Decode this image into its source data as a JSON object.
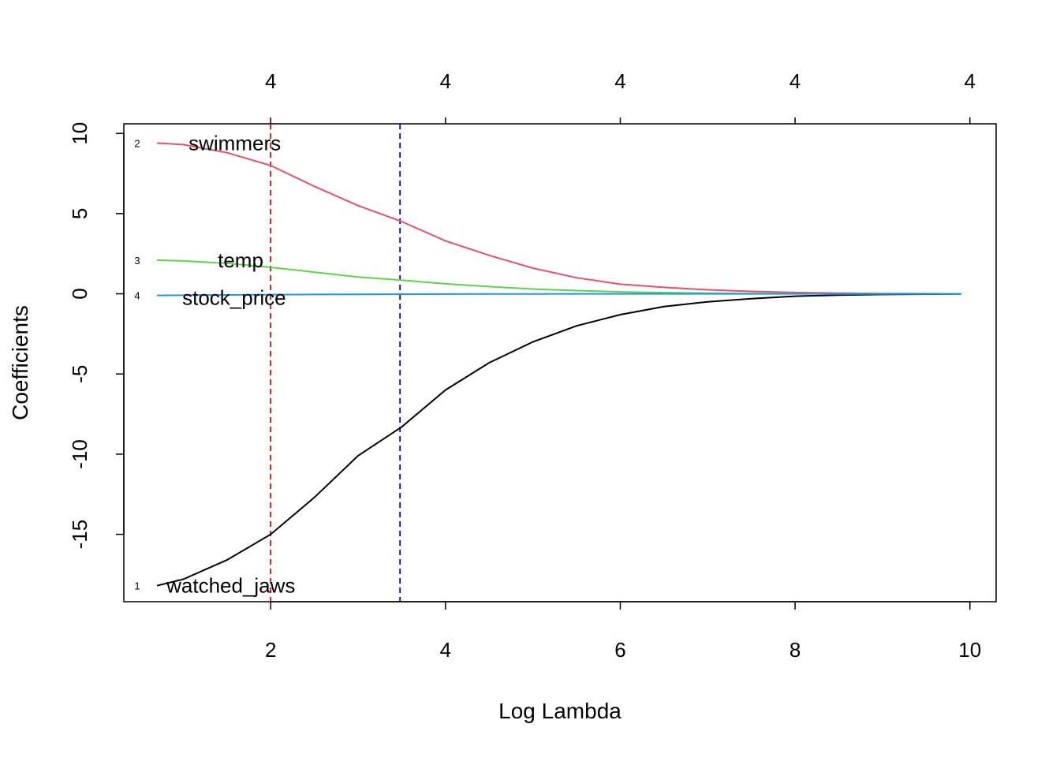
{
  "chart_data": {
    "type": "line",
    "xlabel": "Log Lambda",
    "ylabel": "Coefficients",
    "xlim": [
      0.7,
      9.9
    ],
    "ylim": [
      -18.2,
      10.4
    ],
    "x_ticks": [
      2,
      4,
      6,
      8,
      10
    ],
    "y_ticks": [
      10,
      5,
      0,
      -5,
      -10,
      -15
    ],
    "top_axis": {
      "ticks": [
        2,
        4,
        6,
        8,
        10
      ],
      "labels": [
        "4",
        "4",
        "4",
        "4",
        "4"
      ]
    },
    "grid": false,
    "legend": "none",
    "vlines": [
      {
        "x": 2.0,
        "color": "#e00000",
        "style": "dashed"
      },
      {
        "x": 3.48,
        "color": "#0000cc",
        "style": "dashed"
      }
    ],
    "x": [
      0.7,
      1.0,
      1.5,
      2.0,
      2.5,
      3.0,
      3.5,
      4.0,
      4.5,
      5.0,
      5.5,
      6.0,
      6.5,
      7.0,
      7.5,
      8.0,
      8.5,
      9.0,
      9.5,
      9.9
    ],
    "series": [
      {
        "name": "watched_jaws",
        "index_label": "1",
        "color": "#000000",
        "values": [
          -18.2,
          -17.8,
          -16.6,
          -15.0,
          -12.7,
          -10.1,
          -8.3,
          -6.0,
          -4.3,
          -3.0,
          -2.0,
          -1.3,
          -0.8,
          -0.5,
          -0.3,
          -0.15,
          -0.08,
          -0.04,
          -0.02,
          -0.01
        ]
      },
      {
        "name": "swimmers",
        "index_label": "2",
        "color": "#df536b",
        "values": [
          9.4,
          9.3,
          8.8,
          8.0,
          6.7,
          5.5,
          4.5,
          3.3,
          2.4,
          1.6,
          1.0,
          0.6,
          0.4,
          0.25,
          0.15,
          0.08,
          0.04,
          0.02,
          0.01,
          0.0
        ]
      },
      {
        "name": "temp",
        "index_label": "3",
        "color": "#61d04f",
        "values": [
          2.1,
          2.05,
          1.9,
          1.65,
          1.35,
          1.05,
          0.85,
          0.62,
          0.45,
          0.3,
          0.2,
          0.12,
          0.07,
          0.04,
          0.02,
          0.01,
          0.0,
          0.0,
          0.0,
          0.0
        ]
      },
      {
        "name": "stock_price",
        "index_label": "4",
        "color": "#2297e6",
        "values": [
          -0.1,
          -0.09,
          -0.07,
          -0.05,
          -0.04,
          -0.03,
          -0.02,
          -0.015,
          -0.01,
          -0.005,
          0,
          0,
          0,
          0,
          0,
          0,
          0,
          0,
          0,
          0
        ]
      }
    ]
  }
}
